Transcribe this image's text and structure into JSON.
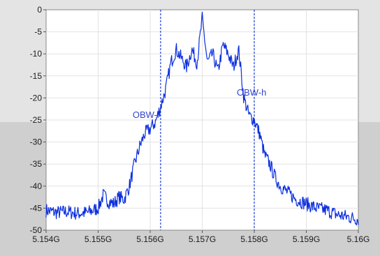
{
  "chart_data": {
    "type": "line",
    "title": "",
    "xlabel": "",
    "ylabel": "",
    "xlim": [
      5.154,
      5.16
    ],
    "ylim": [
      -50,
      0
    ],
    "grid": true,
    "x_ticks": [
      5.154,
      5.155,
      5.156,
      5.157,
      5.158,
      5.159,
      5.16
    ],
    "x_tick_labels": [
      "5.154G",
      "5.155G",
      "5.156G",
      "5.157G",
      "5.158G",
      "5.159G",
      "5.16G"
    ],
    "y_ticks": [
      0,
      -5,
      -10,
      -15,
      -20,
      -25,
      -30,
      -35,
      -40,
      -45,
      -50
    ],
    "y_tick_labels": [
      "0",
      "-5",
      "-10",
      "-15",
      "-20",
      "-25",
      "-30",
      "-35",
      "-40",
      "-45",
      "-50"
    ],
    "series": [
      {
        "color": "#0a2ee0",
        "x": [
          5.154,
          5.1542,
          5.1544,
          5.1546,
          5.1548,
          5.155,
          5.1551,
          5.1552,
          5.1553,
          5.1554,
          5.1555,
          5.1556,
          5.1557,
          5.1558,
          5.1559,
          5.156,
          5.1561,
          5.1562,
          5.1563,
          5.1564,
          5.1565,
          5.1566,
          5.1567,
          5.1568,
          5.1569,
          5.157,
          5.1571,
          5.1572,
          5.1573,
          5.1574,
          5.1575,
          5.1576,
          5.1577,
          5.1578,
          5.1579,
          5.158,
          5.1581,
          5.1582,
          5.1583,
          5.1584,
          5.1585,
          5.1586,
          5.1587,
          5.1588,
          5.1589,
          5.159,
          5.1592,
          5.1594,
          5.1596,
          5.1598,
          5.16
        ],
        "values": [
          -45.5,
          -46,
          -45.8,
          -46.2,
          -46,
          -45,
          -42,
          -43.5,
          -44,
          -42.5,
          -43,
          -40,
          -35,
          -31,
          -28,
          -27,
          -25.5,
          -22,
          -18,
          -12,
          -9,
          -11,
          -13,
          -9,
          -12,
          -2,
          -12,
          -10,
          -14,
          -8,
          -10,
          -13,
          -9,
          -20,
          -24,
          -25,
          -28,
          -33,
          -35,
          -38,
          -40,
          -41,
          -42,
          -43,
          -43.5,
          -44,
          -45,
          -45.5,
          -46.5,
          -47,
          -47.5
        ]
      }
    ],
    "markers": [
      {
        "label": "OBW-l",
        "x": 5.1562
      },
      {
        "label": "OBW-h",
        "x": 5.158
      }
    ]
  }
}
